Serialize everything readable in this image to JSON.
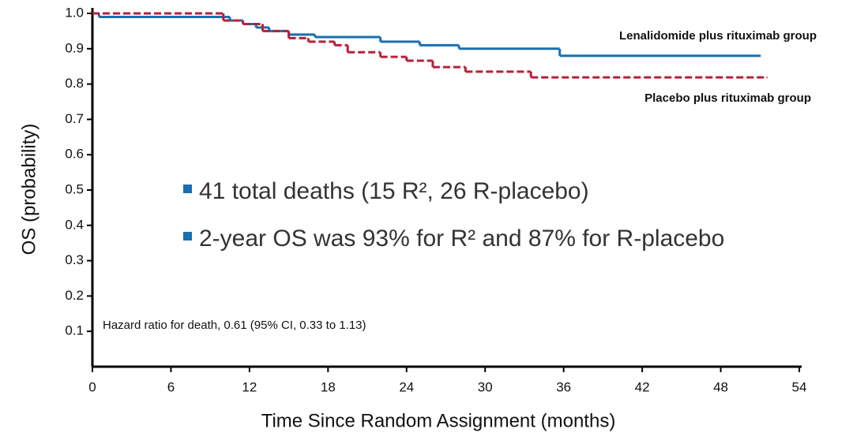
{
  "chart_data": {
    "type": "step",
    "x_label": "Time Since Random Assignment (months)",
    "y_label": "OS (probability)",
    "xlim": [
      0,
      54
    ],
    "xticks": [
      0,
      6,
      12,
      18,
      24,
      30,
      36,
      42,
      48,
      54
    ],
    "ylim": [
      0,
      1
    ],
    "yticks": [
      0.1,
      0.2,
      0.3,
      0.4,
      0.5,
      0.6,
      0.7,
      0.8,
      0.9,
      {
        "value": 1,
        "label": "1.0"
      }
    ],
    "series": [
      {
        "name": "Lenalidomide plus rituximab group",
        "color": "#1a6faf",
        "x": [
          0,
          0.5,
          10.5,
          11.5,
          12.5,
          13.5,
          15,
          17,
          22,
          25,
          28,
          35.7,
          51
        ],
        "values": [
          1.0,
          0.99,
          0.98,
          0.97,
          0.96,
          0.95,
          0.94,
          0.933,
          0.92,
          0.91,
          0.9,
          0.88,
          0.88
        ]
      },
      {
        "name": "Placebo plus rituximab group",
        "color": "#b5213a",
        "x": [
          0,
          10,
          11.5,
          13,
          15,
          16.5,
          18.5,
          19.5,
          22,
          24,
          26,
          28.5,
          33.5,
          51.5
        ],
        "values": [
          1.0,
          0.98,
          0.97,
          0.95,
          0.93,
          0.92,
          0.91,
          0.89,
          0.877,
          0.866,
          0.848,
          0.835,
          0.819,
          0.819
        ]
      }
    ],
    "annotations": [
      "41 total deaths (15 R², 26 R-placebo)",
      "2-year OS was 93% for R² and 87% for R-placebo",
      "Hazard ratio for death, 0.61 (95% CI, 0.33 to 1.13)"
    ]
  }
}
